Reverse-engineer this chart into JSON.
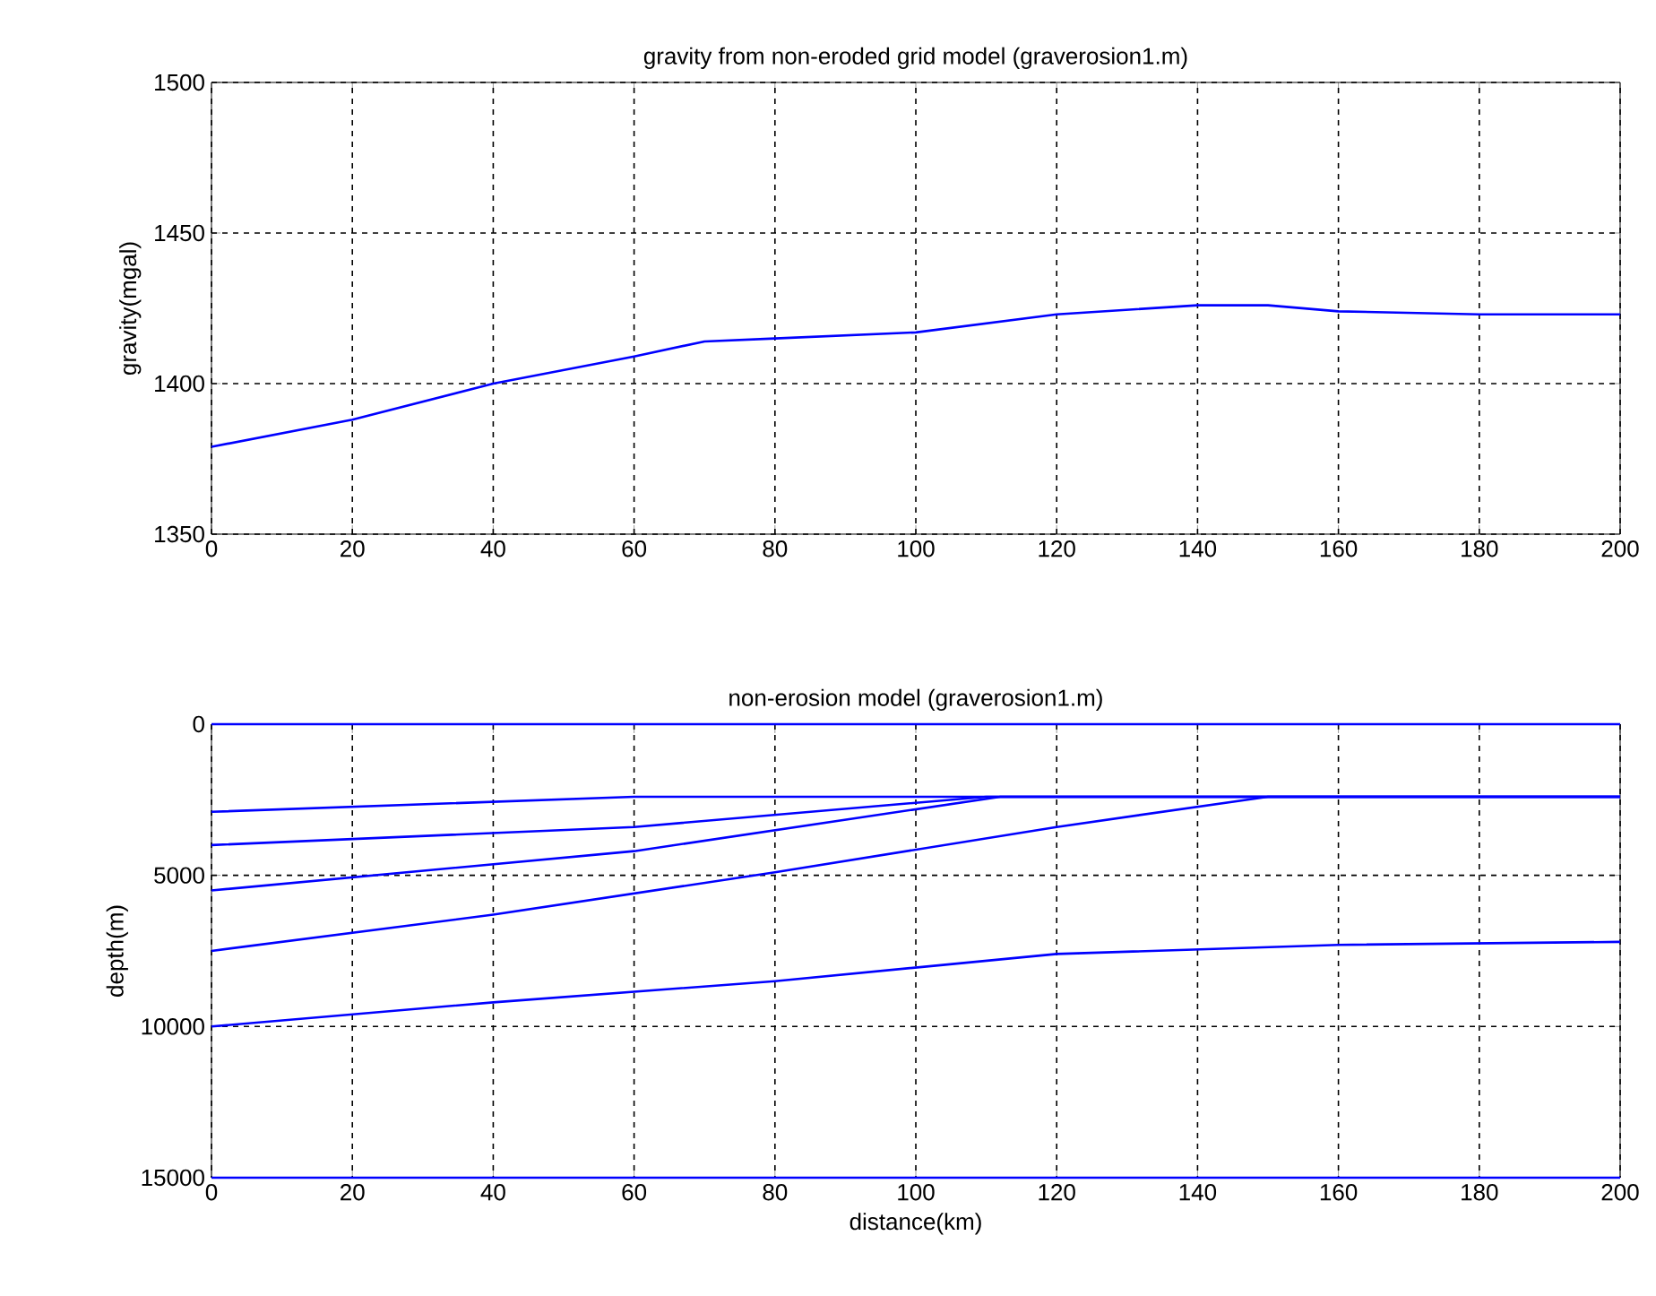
{
  "chart_data": [
    {
      "type": "line",
      "title": "gravity from non-eroded grid model  (graverosion1.m)",
      "ylabel": "gravity(mgal)",
      "series": [
        {
          "color": "#0000ff",
          "x": [
            0,
            20,
            40,
            60,
            70,
            80,
            100,
            120,
            140,
            150,
            160,
            180,
            200
          ],
          "values": [
            1379,
            1388,
            1400,
            1409,
            1414,
            1415,
            1417,
            1423,
            1426,
            1426,
            1424,
            1423,
            1423
          ]
        }
      ],
      "xlim": [
        0,
        200
      ],
      "ylim": [
        1350,
        1500
      ],
      "xticks": [
        0,
        20,
        40,
        60,
        80,
        100,
        120,
        140,
        160,
        180,
        200
      ],
      "yticks": [
        1350,
        1400,
        1450,
        1500
      ],
      "grid": true
    },
    {
      "type": "line",
      "title": "non-erosion model   (graverosion1.m)",
      "xlabel": "distance(km)",
      "ylabel": "depth(m)",
      "series": [
        {
          "color": "#0000ff",
          "x": [
            0,
            200
          ],
          "values": [
            0,
            0
          ]
        },
        {
          "color": "#0000ff",
          "x": [
            0,
            60,
            200
          ],
          "values": [
            2900,
            2400,
            2400
          ]
        },
        {
          "color": "#0000ff",
          "x": [
            0,
            60,
            110,
            200
          ],
          "values": [
            4000,
            3400,
            2400,
            2400
          ]
        },
        {
          "color": "#0000ff",
          "x": [
            0,
            60,
            112,
            200
          ],
          "values": [
            5500,
            4200,
            2400,
            2400
          ]
        },
        {
          "color": "#0000ff",
          "x": [
            0,
            40,
            80,
            120,
            150,
            200
          ],
          "values": [
            7500,
            6300,
            4900,
            3400,
            2400,
            2400
          ]
        },
        {
          "color": "#0000ff",
          "x": [
            0,
            40,
            80,
            120,
            160,
            200
          ],
          "values": [
            10000,
            9200,
            8500,
            7600,
            7300,
            7200
          ]
        },
        {
          "color": "#0000ff",
          "x": [
            0,
            200
          ],
          "values": [
            15000,
            15000
          ]
        }
      ],
      "xlim": [
        0,
        200
      ],
      "ylim": [
        15000,
        0
      ],
      "xticks": [
        0,
        20,
        40,
        60,
        80,
        100,
        120,
        140,
        160,
        180,
        200
      ],
      "yticks": [
        0,
        5000,
        10000,
        15000
      ],
      "grid": true
    }
  ]
}
